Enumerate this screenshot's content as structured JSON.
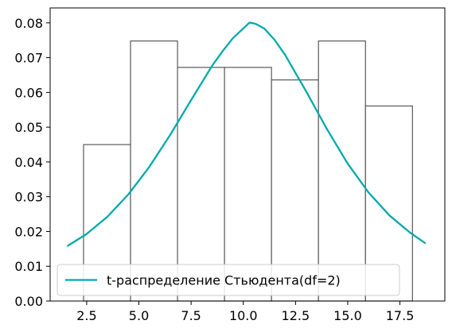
{
  "chart_data": {
    "type": "bar",
    "title": "",
    "xlabel": "",
    "ylabel": "",
    "xlim": [
      0.75,
      19.65
    ],
    "ylim": [
      0,
      0.0843
    ],
    "xticks": [
      "2.5",
      "5.0",
      "7.5",
      "10.0",
      "12.5",
      "15.0",
      "17.5"
    ],
    "yticks": [
      "0.00",
      "0.01",
      "0.02",
      "0.03",
      "0.04",
      "0.05",
      "0.06",
      "0.07",
      "0.08"
    ],
    "grid": false,
    "legend_position": "lower-left",
    "histogram": {
      "bin_edges": [
        2.35,
        4.6,
        6.85,
        9.1,
        11.35,
        13.6,
        15.85,
        18.1
      ],
      "values": [
        0.045,
        0.0748,
        0.0672,
        0.0672,
        0.0636,
        0.0748,
        0.0561
      ],
      "edge_color": "#595959",
      "fill_color": "#ffffff"
    },
    "series": [
      {
        "name": "t-распределение Стьюдента(df=2)",
        "type": "line",
        "color": "#00aaad",
        "x": [
          1.6,
          2.5,
          3.5,
          4.5,
          5.5,
          6.5,
          7.5,
          8.5,
          9.0,
          9.5,
          10.0,
          10.3,
          10.6,
          11.0,
          11.5,
          12.0,
          13.0,
          14.0,
          15.0,
          16.0,
          17.0,
          18.0,
          18.7
        ],
        "y": [
          0.0159,
          0.0193,
          0.0243,
          0.0307,
          0.0386,
          0.0478,
          0.0578,
          0.0676,
          0.0718,
          0.0756,
          0.0784,
          0.0801,
          0.0797,
          0.0784,
          0.0751,
          0.0708,
          0.0604,
          0.0495,
          0.0395,
          0.0312,
          0.0246,
          0.0196,
          0.0167
        ]
      }
    ]
  }
}
